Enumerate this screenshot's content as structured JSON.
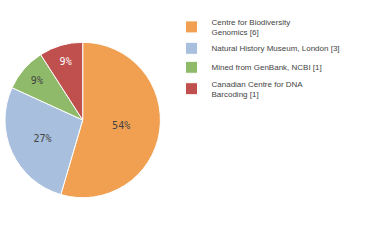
{
  "chart_data": {
    "type": "pie",
    "categories": [
      "Centre for Biodiversity\nGenomics [6]",
      "Natural History Museum, London [3]",
      "Mined from GenBank, NCBI [1]",
      "Canadian Centre for DNA\nBarcoding [1]"
    ],
    "values": [
      54,
      27,
      9,
      9
    ],
    "value_labels": [
      "54%",
      "27%",
      "9%",
      "9%"
    ],
    "colors": [
      "#f0a050",
      "#a8bfdd",
      "#8fba6a",
      "#c0504d"
    ],
    "data_labels": true,
    "legend": "right"
  }
}
